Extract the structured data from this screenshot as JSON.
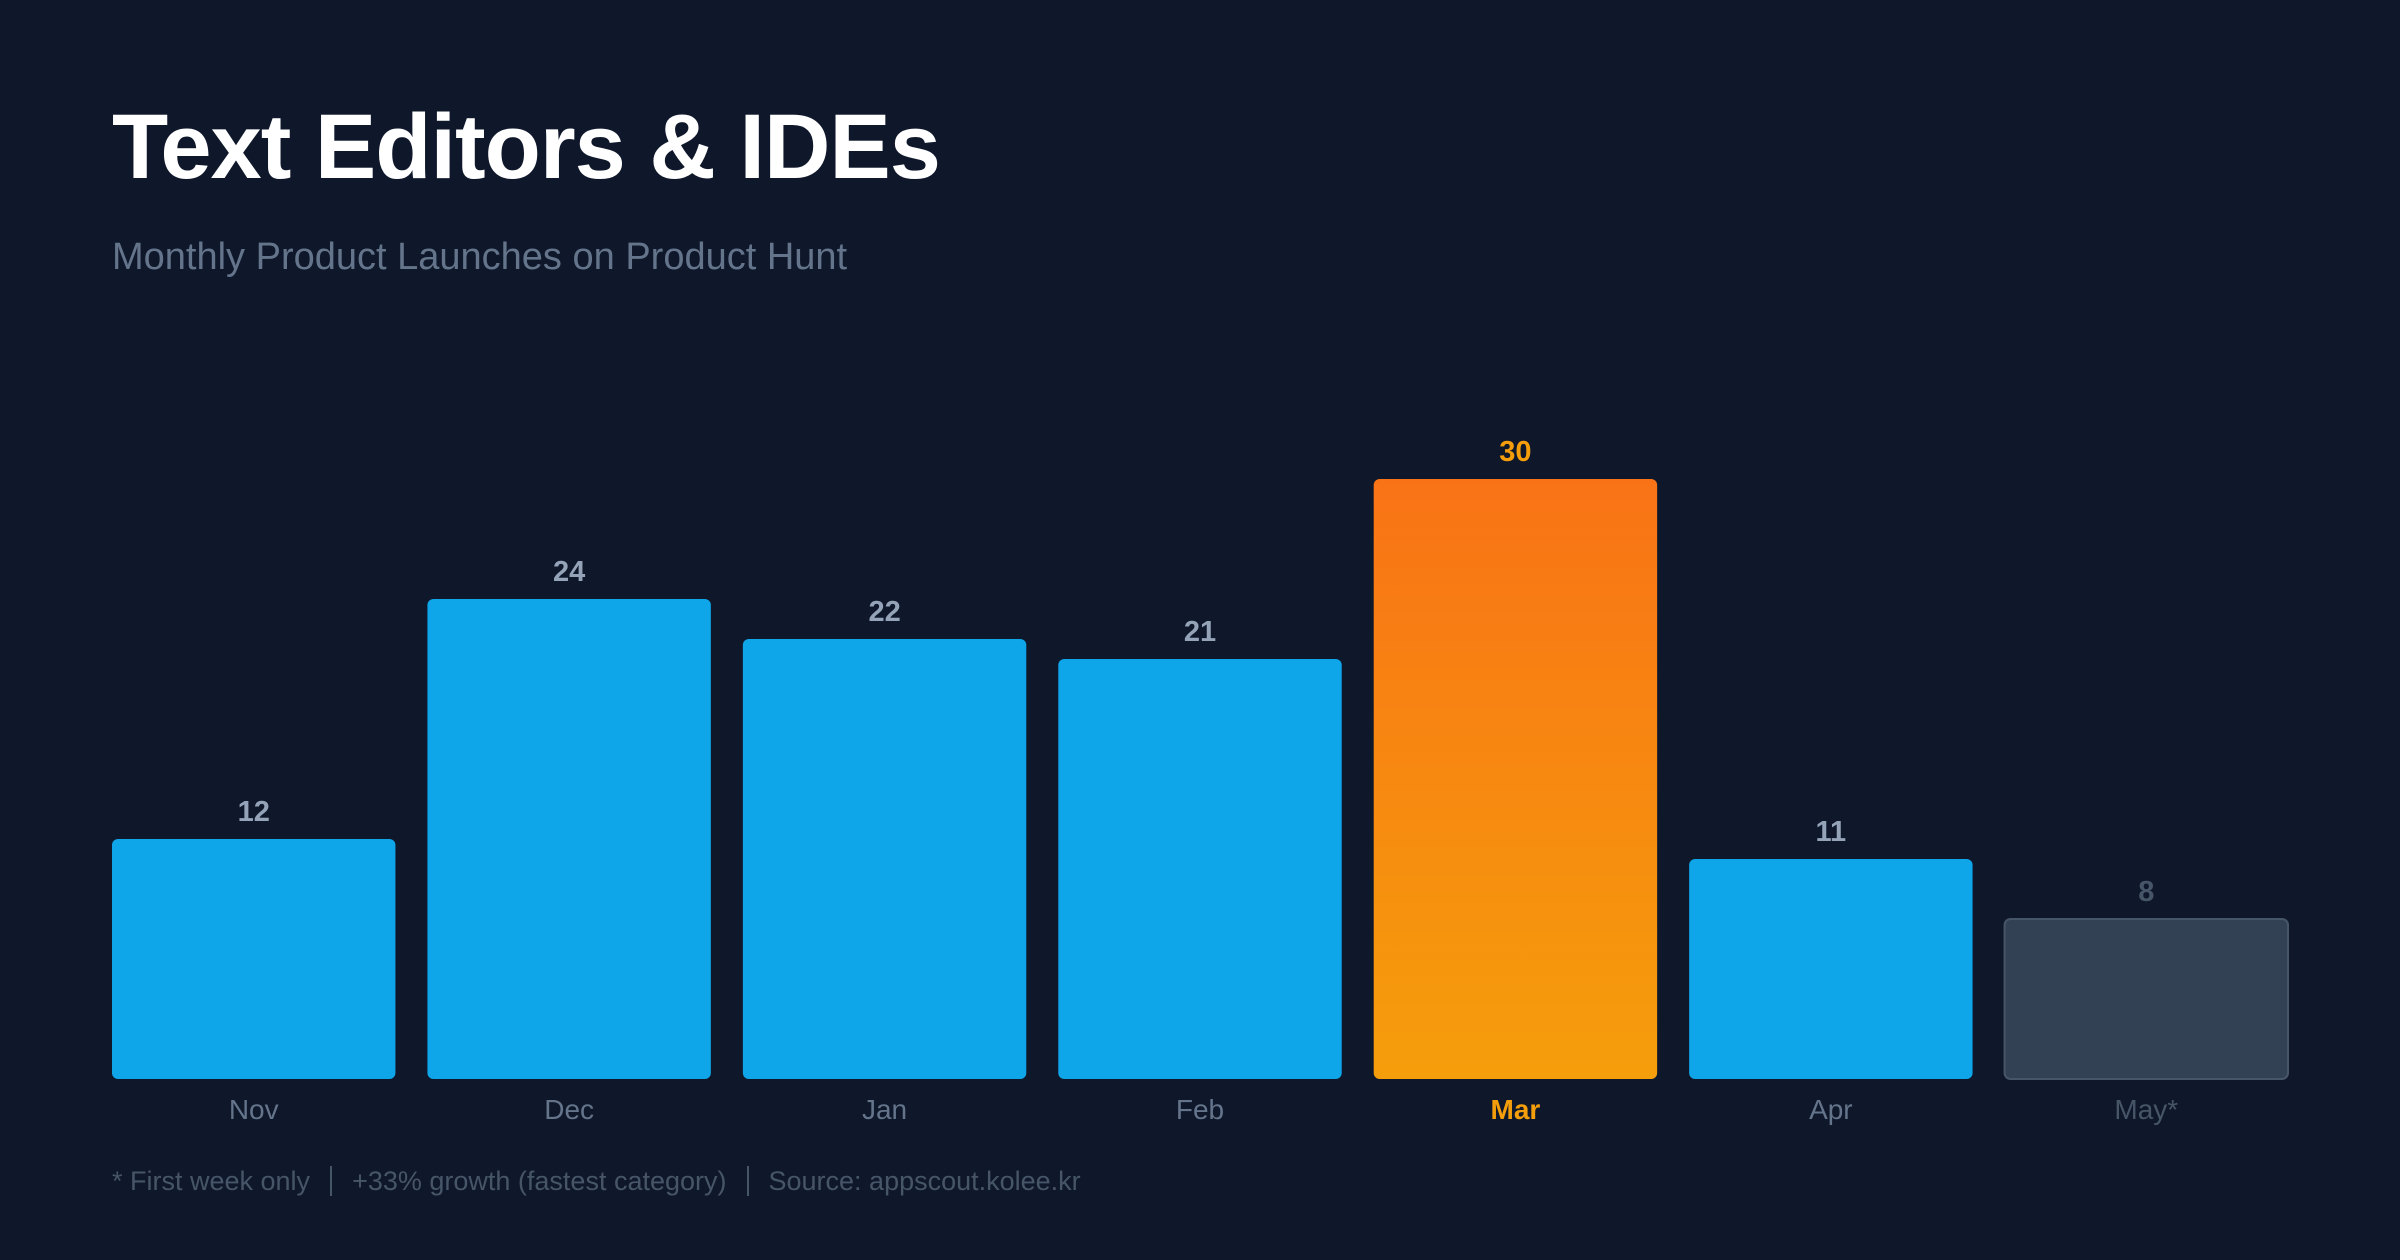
{
  "header": {
    "title": "Text Editors & IDEs",
    "subtitle": "Monthly Product Launches on Product Hunt"
  },
  "footer": {
    "items": [
      "* First week only",
      "+33% growth (fastest category)",
      "Source: appscout.kolee.kr"
    ]
  },
  "colors": {
    "background": "#0f172a",
    "bar": "#0ea5e9",
    "highlight_top": "#f97316",
    "highlight_bottom": "#f59e0b",
    "partial": "#334155",
    "label": "#94a3b8",
    "muted_label": "#475569",
    "highlight_label": "#f59e0b"
  },
  "chart_data": {
    "type": "bar",
    "categories": [
      "Nov",
      "Dec",
      "Jan",
      "Feb",
      "Mar",
      "Apr",
      "May*"
    ],
    "values": [
      12,
      24,
      22,
      21,
      30,
      11,
      8
    ],
    "highlight_category": "Mar",
    "partial_category": "May*",
    "ylim": [
      0,
      30
    ],
    "grid": false,
    "legend": "none"
  }
}
